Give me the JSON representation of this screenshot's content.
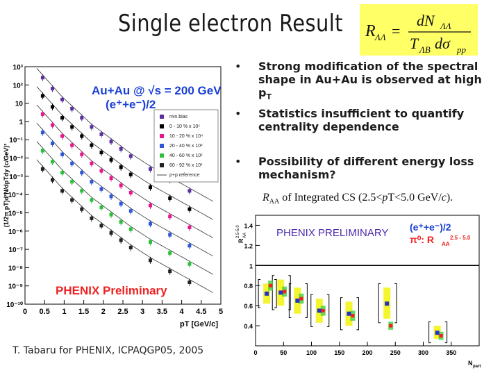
{
  "slide": {
    "title": "Single electron Result",
    "formula": {
      "lhs": "R",
      "lhs_sub": "ΛΛ",
      "num": "dN",
      "num_sub": "ΛΛ",
      "den_t": "T",
      "den_t_sub": "ΛB",
      "den_rest": "dσ",
      "den_sub": "pp"
    },
    "bullets": [
      {
        "marker": "•",
        "lines": [
          "Strong modification of the spectral",
          "shape in Au+Au is observed at high p"
        ],
        "tail_sub": "T"
      },
      {
        "marker": "•",
        "lines": [
          "Statistics insufficient to quantify",
          "centrality dependence"
        ]
      },
      {
        "marker": "•",
        "lines": [
          "Possibility of different energy loss",
          "mechanism?"
        ]
      }
    ],
    "caption": {
      "pre": "R",
      "pre_sub": "AA",
      "text": " of Integrated CS (2.5<",
      "italic_p": "p",
      "mid": "T<5.0 GeV/",
      "italic_c": "c",
      "end": ")."
    },
    "footer": "T. Tabaru for PHENIX, ICPAQGP05, 2005"
  },
  "chart_data": [
    {
      "type": "scatter",
      "title": "Au+Au @ √s = 200 GeV (e⁺+e⁻)/2",
      "title_parts": {
        "system": "Au+Au @ ",
        "sqrt": "√",
        "s": "s = 200 GeV",
        "particle": "(e⁺+e⁻)/2"
      },
      "xlabel": "pT [GeV/c]",
      "ylabel": "(1/2π pT)d²N/dpTdy (c/GeV)²",
      "xlim": [
        0,
        5
      ],
      "ylim_log10": [
        -10,
        3
      ],
      "xticks": [
        "0",
        "0.5",
        "1",
        "1.5",
        "2",
        "2.5",
        "3",
        "3.5",
        "4",
        "4.5",
        "5"
      ],
      "yticks": [
        "10⁻¹⁰",
        "10⁻⁹",
        "10⁻⁸",
        "10⁻⁷",
        "10⁻⁶",
        "10⁻⁵",
        "10⁻⁴",
        "10⁻³",
        "10⁻²",
        "10⁻¹",
        "1",
        "10",
        "10²",
        "10³"
      ],
      "annotation": "PHENIX Preliminary",
      "legend": [
        {
          "label": "min.bias",
          "color": "#5a2fa0"
        },
        {
          "label": "0 - 10 % x 10⁵",
          "color": "#000000"
        },
        {
          "label": "10 - 20 % x 10⁴",
          "color": "#e8158c"
        },
        {
          "label": "20 - 40 % x 10³",
          "color": "#2d57d8"
        },
        {
          "label": "40 - 60 % x 10²",
          "color": "#2bbf3a"
        },
        {
          "label": "60 - 92 % x 10¹",
          "color": "#222222"
        },
        {
          "label": "p+p reference",
          "color": "#444444"
        }
      ],
      "x": [
        0.45,
        0.7,
        0.95,
        1.2,
        1.45,
        1.7,
        1.95,
        2.2,
        2.45,
        2.7,
        3.2,
        3.7,
        4.2
      ],
      "series": [
        {
          "name": "min.bias",
          "color": "#5a2fa0",
          "values_log10": [
            2.4,
            1.8,
            1.2,
            0.7,
            0.2,
            -0.3,
            -0.7,
            -1.1,
            -1.5,
            -1.9,
            -2.6,
            -3.2,
            -3.8
          ]
        },
        {
          "name": "0-10%",
          "color": "#000000",
          "values_log10": [
            1.4,
            0.8,
            0.2,
            -0.3,
            -0.8,
            -1.3,
            -1.7,
            -2.1,
            -2.5,
            -2.9,
            -3.6,
            -4.2,
            -4.8
          ]
        },
        {
          "name": "10-20%",
          "color": "#e8158c",
          "values_log10": [
            0.4,
            -0.2,
            -0.8,
            -1.3,
            -1.8,
            -2.3,
            -2.7,
            -3.1,
            -3.5,
            -3.9,
            -4.6,
            -5.2,
            -5.8
          ]
        },
        {
          "name": "20-40%",
          "color": "#2d57d8",
          "values_log10": [
            -0.6,
            -1.2,
            -1.8,
            -2.3,
            -2.8,
            -3.3,
            -3.7,
            -4.1,
            -4.5,
            -4.9,
            -5.6,
            -6.2,
            -6.8
          ]
        },
        {
          "name": "40-60%",
          "color": "#2bbf3a",
          "values_log10": [
            -1.6,
            -2.2,
            -2.8,
            -3.3,
            -3.8,
            -4.3,
            -4.7,
            -5.1,
            -5.5,
            -5.9,
            -6.6,
            -7.2,
            -7.8
          ]
        },
        {
          "name": "60-92%",
          "color": "#222222",
          "values_log10": [
            -2.6,
            -3.2,
            -3.8,
            -4.3,
            -4.8,
            -5.3,
            -5.7,
            -6.1,
            -6.5,
            -6.9,
            -7.6,
            -8.2,
            -8.8
          ]
        }
      ]
    },
    {
      "type": "scatter",
      "title": "PHENIX PRELIMINARY",
      "legend_top": "(e⁺+e⁻)/2",
      "legend_bottom": "π⁰: R",
      "legend_bottom_sub": "AA",
      "legend_bottom_range": "2.5 - 5.0",
      "ylabel": "R",
      "ylabel_sub": "AA",
      "ylabel_sup": "2.5-5.0",
      "xlabel": "N",
      "xlabel_sub": "part",
      "xlim": [
        0,
        400
      ],
      "ylim": [
        0.2,
        1.5
      ],
      "xticks": [
        "0",
        "50",
        "100",
        "150",
        "200",
        "250",
        "300",
        "350"
      ],
      "yticks": [
        "0.4",
        "0.6",
        "0.8",
        "1",
        "1.2",
        "1.4"
      ],
      "reference_line": 1.0,
      "npart": [
        325,
        235,
        167,
        114,
        75,
        45,
        20
      ],
      "electron": {
        "name": "(e⁺+e⁻)/2",
        "color": "#2233cc",
        "values": [
          0.33,
          0.62,
          0.52,
          0.55,
          0.65,
          0.73,
          0.72
        ],
        "band_low": [
          0.27,
          0.47,
          0.4,
          0.43,
          0.52,
          0.6,
          0.62
        ],
        "band_high": [
          0.4,
          0.78,
          0.64,
          0.67,
          0.78,
          0.86,
          0.82
        ]
      },
      "pizero": {
        "name": "π⁰ RAA",
        "color": "#ff1a1a",
        "values": [
          0.3,
          0.4,
          0.5,
          0.55,
          0.67,
          0.74,
          0.8
        ],
        "band_low": [
          0.26,
          0.36,
          0.45,
          0.5,
          0.62,
          0.69,
          0.75
        ],
        "band_high": [
          0.34,
          0.44,
          0.55,
          0.6,
          0.72,
          0.79,
          0.85
        ]
      }
    }
  ]
}
